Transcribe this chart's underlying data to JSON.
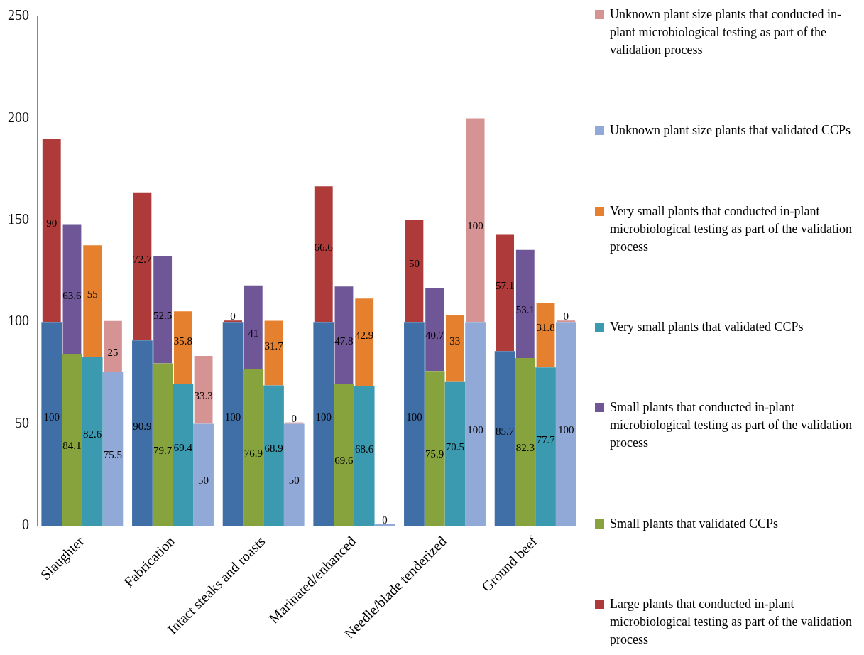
{
  "chart_data": {
    "type": "bar",
    "categories": [
      "Slaughter",
      "Fabrication",
      "Intact steaks and roasts",
      "Marinated/enhanced",
      "Needle/blade tenderized",
      "Ground beef"
    ],
    "series": [
      {
        "color": "#3f6fa6",
        "values": [
          100,
          90.9,
          100,
          100,
          100,
          85.7
        ]
      },
      {
        "name": "Large plants that conducted in-plant microbiological testing as part of the validation process",
        "color": "#ae3b3a",
        "values": [
          90,
          72.7,
          0,
          66.6,
          50,
          57.1
        ],
        "base": [
          100,
          90.9,
          100,
          100,
          100,
          85.7
        ]
      },
      {
        "name": "Small plants that validated CCPs",
        "color": "#86a33e",
        "values": [
          84.1,
          79.7,
          76.9,
          69.6,
          75.9,
          82.3
        ]
      },
      {
        "name": "Small plants that conducted in-plant microbiological testing as part of the validation process",
        "color": "#6f5696",
        "values": [
          63.6,
          52.5,
          41,
          47.8,
          40.7,
          53.1
        ],
        "base": [
          84.1,
          79.7,
          76.9,
          69.6,
          75.9,
          82.3
        ]
      },
      {
        "name": "Very small plants that validated CCPs",
        "color": "#3c9ab0",
        "values": [
          82.6,
          69.4,
          68.9,
          68.6,
          70.5,
          77.7
        ]
      },
      {
        "name": "Very small plants that conducted in-plant microbiological testing as part of the validation process",
        "color": "#e5812e",
        "values": [
          55,
          35.8,
          31.7,
          42.9,
          33,
          31.8
        ],
        "base": [
          82.6,
          69.4,
          68.9,
          68.6,
          70.5,
          77.7
        ]
      },
      {
        "name": "Unknown plant size plants that validated CCPs",
        "color": "#91a9d6",
        "values": [
          75.5,
          50,
          50,
          0,
          100,
          100
        ]
      },
      {
        "name": "Unknown plant size plants that conducted in-plant microbiological testing as part of the validation process",
        "color": "#d59393",
        "values": [
          25,
          33.3,
          0,
          null,
          100,
          0
        ],
        "base": [
          75.5,
          50,
          50,
          null,
          100,
          100
        ]
      }
    ],
    "ylim": [
      0,
      250
    ],
    "yticks": [
      0,
      50,
      100,
      150,
      200,
      250
    ],
    "grid": false,
    "legend": "right",
    "data_labels": true
  }
}
